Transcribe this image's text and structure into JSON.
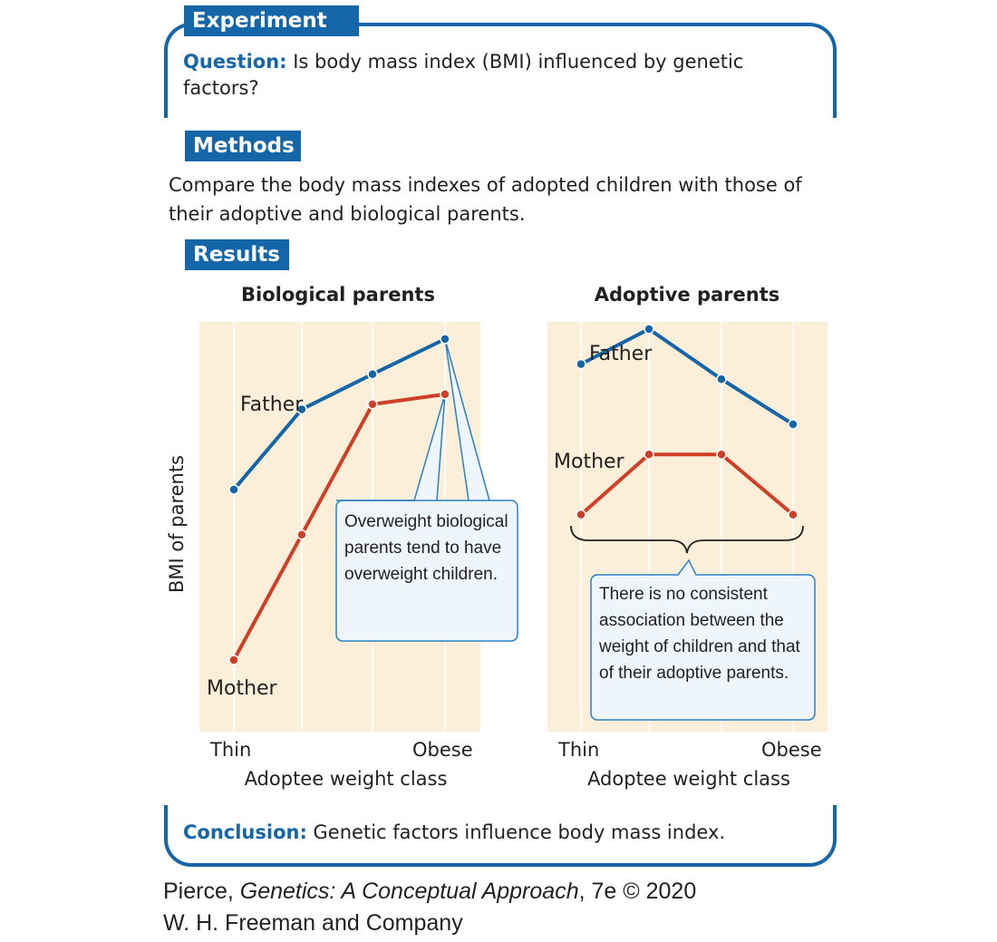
{
  "experiment": {
    "tag": "Experiment",
    "question_label": "Question:",
    "question_text": " Is body mass index (BMI) influenced by genetic factors?"
  },
  "methods": {
    "tag": "Methods",
    "text": "Compare the body mass indexes of adopted children with those of their adoptive and biological parents."
  },
  "results": {
    "tag": "Results",
    "ylabel": "BMI of parents"
  },
  "chart_data": [
    {
      "type": "line",
      "title": "Biological parents",
      "xlabel": "Adoptee weight class",
      "ylabel": "BMI of parents",
      "x_tick_labels": [
        "Thin",
        "Obese"
      ],
      "categories": [
        1,
        2,
        3,
        4
      ],
      "series": [
        {
          "name": "Father",
          "color": "#1566a8",
          "values": [
            5.1,
            6.7,
            7.4,
            8.1
          ]
        },
        {
          "name": "Mother",
          "color": "#cf3e26",
          "values": [
            1.7,
            4.2,
            6.8,
            7.0
          ]
        }
      ],
      "ylim": [
        0,
        9
      ],
      "callout": "Overweight biological parents tend to have overweight children."
    },
    {
      "type": "line",
      "title": "Adoptive parents",
      "xlabel": "Adoptee weight class",
      "x_tick_labels": [
        "Thin",
        "Obese"
      ],
      "categories": [
        1,
        2,
        3,
        4
      ],
      "series": [
        {
          "name": "Father",
          "color": "#1566a8",
          "values": [
            7.6,
            8.3,
            7.3,
            6.4
          ]
        },
        {
          "name": "Mother",
          "color": "#cf3e26",
          "values": [
            4.6,
            5.8,
            5.8,
            4.6
          ]
        }
      ],
      "ylim": [
        0,
        9
      ],
      "callout": "There is no consistent association between the weight of children and that of their adoptive parents."
    }
  ],
  "conclusion": {
    "label": "Conclusion:",
    "text": " Genetic factors influence body mass index."
  },
  "credit": {
    "line1_prefix": "Pierce, ",
    "line1_title": "Genetics: A Conceptual Approach",
    "line1_suffix": ", 7e © 2020",
    "line2": "W. H. Freeman and Company"
  },
  "colors": {
    "accent": "#1566a8",
    "father": "#1566a8",
    "mother": "#cf3e26",
    "plot_background": "#fbefd9",
    "callout_fill": "#eef6fc",
    "callout_stroke": "#2b80c5"
  }
}
